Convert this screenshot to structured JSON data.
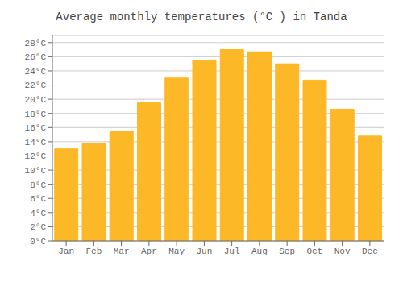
{
  "chart_data": {
    "type": "bar",
    "title": "Average monthly temperatures (°C ) in Tanda",
    "categories": [
      "Jan",
      "Feb",
      "Mar",
      "Apr",
      "May",
      "Jun",
      "Jul",
      "Aug",
      "Sep",
      "Oct",
      "Nov",
      "Dec"
    ],
    "values": [
      13.0,
      13.7,
      15.5,
      19.5,
      23.0,
      25.5,
      27.0,
      26.7,
      25.0,
      22.7,
      18.6,
      14.8
    ],
    "color": "#FDB827",
    "ylim": [
      0,
      29
    ],
    "yticks": [
      {
        "value": 0,
        "label": "0°C"
      },
      {
        "value": 2,
        "label": "2°C"
      },
      {
        "value": 4,
        "label": "4°C"
      },
      {
        "value": 6,
        "label": "6°C"
      },
      {
        "value": 8,
        "label": "8°C"
      },
      {
        "value": 10,
        "label": "10°C"
      },
      {
        "value": 12,
        "label": "12°C"
      },
      {
        "value": 14,
        "label": "14°C"
      },
      {
        "value": 16,
        "label": "16°C"
      },
      {
        "value": 18,
        "label": "18°C"
      },
      {
        "value": 20,
        "label": "20°C"
      },
      {
        "value": 22,
        "label": "22°C"
      },
      {
        "value": 24,
        "label": "24°C"
      },
      {
        "value": 26,
        "label": "26°C"
      },
      {
        "value": 28,
        "label": "28°C"
      }
    ],
    "grid": true
  }
}
